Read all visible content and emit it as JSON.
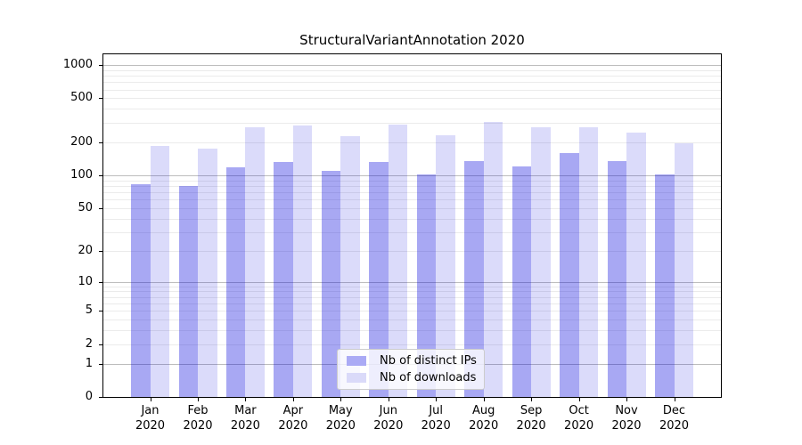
{
  "chart_data": {
    "type": "bar",
    "title": "StructuralVariantAnnotation 2020",
    "xlabel": "",
    "ylabel": "",
    "year": "2020",
    "categories": [
      "Jan",
      "Feb",
      "Mar",
      "Apr",
      "May",
      "Jun",
      "Jul",
      "Aug",
      "Sep",
      "Oct",
      "Nov",
      "Dec"
    ],
    "series": [
      {
        "name": "Nb of distinct IPs",
        "values": [
          83,
          80,
          118,
          133,
          110,
          131,
          101,
          135,
          120,
          159,
          135,
          101
        ],
        "color": "#aaaaf5",
        "fill": "rgba(0,0,220,0.34)"
      },
      {
        "name": "Nb of downloads",
        "values": [
          185,
          176,
          274,
          286,
          228,
          287,
          229,
          306,
          273,
          274,
          246,
          196
        ],
        "color": "#dadaf9",
        "fill": "rgba(0,0,220,0.14)"
      }
    ],
    "y_scale": "log1p",
    "y_ticks": [
      0,
      1,
      2,
      5,
      10,
      20,
      50,
      100,
      200,
      500,
      1000
    ],
    "ylim": [
      0,
      1150
    ],
    "grid": {
      "on": true,
      "major_lines": [
        1,
        10,
        100,
        1000
      ],
      "minor_lines": "2-9 of each decade"
    },
    "legend": {
      "position": "lower-center-inside"
    }
  }
}
